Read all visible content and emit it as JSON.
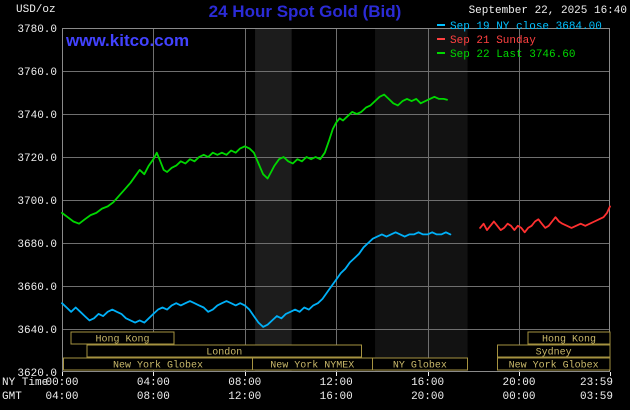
{
  "chart_data": {
    "type": "line",
    "title": "24 Hour Spot Gold (Bid)",
    "unit_label": "USD/oz",
    "timestamp": "September 22, 2025 16:40",
    "watermark": "www.kitco.com",
    "colors": {
      "background": "#000000",
      "title": "#2b2bd6",
      "watermark": "#4242ff",
      "grid": "#6f6f6f",
      "border": "#8a8a8a",
      "axis_text": "#efefef",
      "session_border": "#a59240",
      "session_text": "#c9b86a"
    },
    "y_axis": {
      "min": 3620,
      "max": 3780,
      "step": 20,
      "tick_labels": [
        "3780.0",
        "3760.0",
        "3740.0",
        "3720.0",
        "3700.0",
        "3680.0",
        "3660.0",
        "3640.0",
        "3620.0"
      ]
    },
    "x_axis": {
      "range_hours": [
        0,
        23.983
      ],
      "tick_hours": [
        0,
        4,
        8,
        12,
        16,
        20,
        23.983
      ],
      "rows": [
        {
          "name": "NY Time",
          "labels": [
            "00:00",
            "04:00",
            "08:00",
            "12:00",
            "16:00",
            "20:00",
            "23:59"
          ]
        },
        {
          "name": "GMT",
          "labels": [
            "04:00",
            "08:00",
            "12:00",
            "16:00",
            "20:00",
            "00:00",
            "03:59"
          ]
        }
      ]
    },
    "legend": [
      {
        "label": "Sep 19 NY close 3684.00",
        "color": "#00c0ff"
      },
      {
        "label": "Sep 21 Sunday",
        "color": "#ff4040"
      },
      {
        "label": "Sep 22 Last 3746.60",
        "color": "#00d800"
      }
    ],
    "shaded_bands": [
      {
        "start": 8.45,
        "end": 10.05,
        "opacity": 0.11
      },
      {
        "start": 13.7,
        "end": 17.75,
        "opacity": 0.07
      }
    ],
    "session_rows": [
      [
        {
          "label": "Hong Kong",
          "start": 0.4,
          "end": 4.9
        },
        {
          "label": "Hong Kong",
          "start": 20.4,
          "end": 23.983
        }
      ],
      [
        {
          "label": "London",
          "start": 1.1,
          "end": 13.1
        },
        {
          "label": "Sydney",
          "start": 19.05,
          "end": 23.983
        }
      ],
      [
        {
          "label": "New York Globex",
          "start": 0.07,
          "end": 8.33
        },
        {
          "label": "New York NYMEX",
          "start": 8.33,
          "end": 13.58
        },
        {
          "label": "NY Globex",
          "start": 13.58,
          "end": 17.75
        },
        {
          "label": "New York Globex",
          "start": 19.05,
          "end": 23.983
        }
      ]
    ],
    "series": [
      {
        "id": "sep19",
        "name": "Sep 19",
        "color": "#00b0f8",
        "close": 3684.0,
        "points": [
          [
            0,
            3652
          ],
          [
            0.2,
            3650
          ],
          [
            0.4,
            3648
          ],
          [
            0.6,
            3650
          ],
          [
            0.8,
            3648
          ],
          [
            1,
            3646
          ],
          [
            1.2,
            3644
          ],
          [
            1.4,
            3645
          ],
          [
            1.6,
            3647
          ],
          [
            1.8,
            3646
          ],
          [
            2,
            3648
          ],
          [
            2.2,
            3649
          ],
          [
            2.4,
            3648
          ],
          [
            2.6,
            3647
          ],
          [
            2.8,
            3645
          ],
          [
            3,
            3644
          ],
          [
            3.2,
            3643
          ],
          [
            3.4,
            3644
          ],
          [
            3.6,
            3643
          ],
          [
            3.8,
            3645
          ],
          [
            4,
            3647
          ],
          [
            4.2,
            3649
          ],
          [
            4.4,
            3650
          ],
          [
            4.6,
            3649
          ],
          [
            4.8,
            3651
          ],
          [
            5,
            3652
          ],
          [
            5.2,
            3651
          ],
          [
            5.4,
            3652
          ],
          [
            5.6,
            3653
          ],
          [
            5.8,
            3652
          ],
          [
            6,
            3651
          ],
          [
            6.2,
            3650
          ],
          [
            6.4,
            3648
          ],
          [
            6.6,
            3649
          ],
          [
            6.8,
            3651
          ],
          [
            7,
            3652
          ],
          [
            7.2,
            3653
          ],
          [
            7.4,
            3652
          ],
          [
            7.6,
            3651
          ],
          [
            7.8,
            3652
          ],
          [
            8,
            3651
          ],
          [
            8.2,
            3649
          ],
          [
            8.4,
            3646
          ],
          [
            8.6,
            3643
          ],
          [
            8.8,
            3641
          ],
          [
            9,
            3642
          ],
          [
            9.2,
            3644
          ],
          [
            9.4,
            3646
          ],
          [
            9.6,
            3645
          ],
          [
            9.8,
            3647
          ],
          [
            10,
            3648
          ],
          [
            10.2,
            3649
          ],
          [
            10.4,
            3648
          ],
          [
            10.6,
            3650
          ],
          [
            10.8,
            3649
          ],
          [
            11,
            3651
          ],
          [
            11.2,
            3652
          ],
          [
            11.4,
            3654
          ],
          [
            11.6,
            3657
          ],
          [
            11.8,
            3660
          ],
          [
            12,
            3663
          ],
          [
            12.2,
            3666
          ],
          [
            12.4,
            3668
          ],
          [
            12.6,
            3671
          ],
          [
            12.8,
            3673
          ],
          [
            13,
            3675
          ],
          [
            13.2,
            3678
          ],
          [
            13.4,
            3680
          ],
          [
            13.6,
            3682
          ],
          [
            13.8,
            3683
          ],
          [
            14,
            3684
          ],
          [
            14.2,
            3683
          ],
          [
            14.4,
            3684
          ],
          [
            14.6,
            3685
          ],
          [
            14.8,
            3684
          ],
          [
            15,
            3683
          ],
          [
            15.2,
            3684
          ],
          [
            15.4,
            3684
          ],
          [
            15.6,
            3685
          ],
          [
            15.8,
            3684
          ],
          [
            16,
            3684
          ],
          [
            16.2,
            3685
          ],
          [
            16.4,
            3684
          ],
          [
            16.6,
            3684
          ],
          [
            16.8,
            3685
          ],
          [
            17,
            3684
          ]
        ]
      },
      {
        "id": "sep21",
        "name": "Sep 21",
        "color": "#ff3030",
        "points": [
          [
            18.3,
            3687
          ],
          [
            18.45,
            3689
          ],
          [
            18.6,
            3686
          ],
          [
            18.75,
            3688
          ],
          [
            18.9,
            3690
          ],
          [
            19.05,
            3688
          ],
          [
            19.2,
            3686
          ],
          [
            19.35,
            3687
          ],
          [
            19.5,
            3689
          ],
          [
            19.65,
            3688
          ],
          [
            19.8,
            3686
          ],
          [
            19.95,
            3688
          ],
          [
            20.1,
            3687
          ],
          [
            20.25,
            3685
          ],
          [
            20.4,
            3687
          ],
          [
            20.55,
            3688
          ],
          [
            20.7,
            3690
          ],
          [
            20.85,
            3691
          ],
          [
            21,
            3689
          ],
          [
            21.15,
            3687
          ],
          [
            21.3,
            3688
          ],
          [
            21.45,
            3690
          ],
          [
            21.6,
            3692
          ],
          [
            21.75,
            3690
          ],
          [
            21.9,
            3689
          ],
          [
            22.1,
            3688
          ],
          [
            22.3,
            3687
          ],
          [
            22.5,
            3688
          ],
          [
            22.7,
            3689
          ],
          [
            22.9,
            3688
          ],
          [
            23.1,
            3689
          ],
          [
            23.3,
            3690
          ],
          [
            23.5,
            3691
          ],
          [
            23.7,
            3692
          ],
          [
            23.85,
            3694
          ],
          [
            23.983,
            3697
          ]
        ]
      },
      {
        "id": "sep22",
        "name": "Sep 22",
        "color": "#00d800",
        "last": 3746.6,
        "points": [
          [
            0,
            3694
          ],
          [
            0.25,
            3692
          ],
          [
            0.5,
            3690
          ],
          [
            0.75,
            3689
          ],
          [
            1,
            3691
          ],
          [
            1.25,
            3693
          ],
          [
            1.5,
            3694
          ],
          [
            1.75,
            3696
          ],
          [
            2,
            3697
          ],
          [
            2.25,
            3699
          ],
          [
            2.5,
            3702
          ],
          [
            2.75,
            3705
          ],
          [
            3,
            3708
          ],
          [
            3.2,
            3711
          ],
          [
            3.4,
            3714
          ],
          [
            3.6,
            3712
          ],
          [
            3.8,
            3716
          ],
          [
            4,
            3719
          ],
          [
            4.15,
            3722
          ],
          [
            4.3,
            3718
          ],
          [
            4.45,
            3714
          ],
          [
            4.6,
            3713
          ],
          [
            4.8,
            3715
          ],
          [
            5,
            3716
          ],
          [
            5.2,
            3718
          ],
          [
            5.4,
            3717
          ],
          [
            5.6,
            3719
          ],
          [
            5.8,
            3718
          ],
          [
            6,
            3720
          ],
          [
            6.2,
            3721
          ],
          [
            6.4,
            3720
          ],
          [
            6.6,
            3722
          ],
          [
            6.8,
            3721
          ],
          [
            7,
            3722
          ],
          [
            7.2,
            3721
          ],
          [
            7.4,
            3723
          ],
          [
            7.6,
            3722
          ],
          [
            7.8,
            3724
          ],
          [
            8,
            3725
          ],
          [
            8.2,
            3724
          ],
          [
            8.4,
            3722
          ],
          [
            8.6,
            3717
          ],
          [
            8.8,
            3712
          ],
          [
            9,
            3710
          ],
          [
            9.15,
            3713
          ],
          [
            9.3,
            3716
          ],
          [
            9.5,
            3719
          ],
          [
            9.7,
            3720
          ],
          [
            9.9,
            3718
          ],
          [
            10.1,
            3717
          ],
          [
            10.3,
            3719
          ],
          [
            10.5,
            3718
          ],
          [
            10.7,
            3720
          ],
          [
            10.9,
            3719
          ],
          [
            11.1,
            3720
          ],
          [
            11.3,
            3719
          ],
          [
            11.5,
            3722
          ],
          [
            11.7,
            3728
          ],
          [
            11.85,
            3733
          ],
          [
            12,
            3736
          ],
          [
            12.15,
            3738
          ],
          [
            12.3,
            3737
          ],
          [
            12.5,
            3739
          ],
          [
            12.7,
            3741
          ],
          [
            12.9,
            3740
          ],
          [
            13.1,
            3741
          ],
          [
            13.3,
            3743
          ],
          [
            13.5,
            3744
          ],
          [
            13.7,
            3746
          ],
          [
            13.9,
            3748
          ],
          [
            14.1,
            3749
          ],
          [
            14.3,
            3747
          ],
          [
            14.5,
            3745
          ],
          [
            14.7,
            3744
          ],
          [
            14.9,
            3746
          ],
          [
            15.1,
            3747
          ],
          [
            15.3,
            3746
          ],
          [
            15.5,
            3747
          ],
          [
            15.7,
            3745
          ],
          [
            15.9,
            3746
          ],
          [
            16.1,
            3747
          ],
          [
            16.3,
            3748
          ],
          [
            16.5,
            3747
          ],
          [
            16.7,
            3747
          ],
          [
            16.85,
            3746.6
          ]
        ]
      }
    ]
  }
}
